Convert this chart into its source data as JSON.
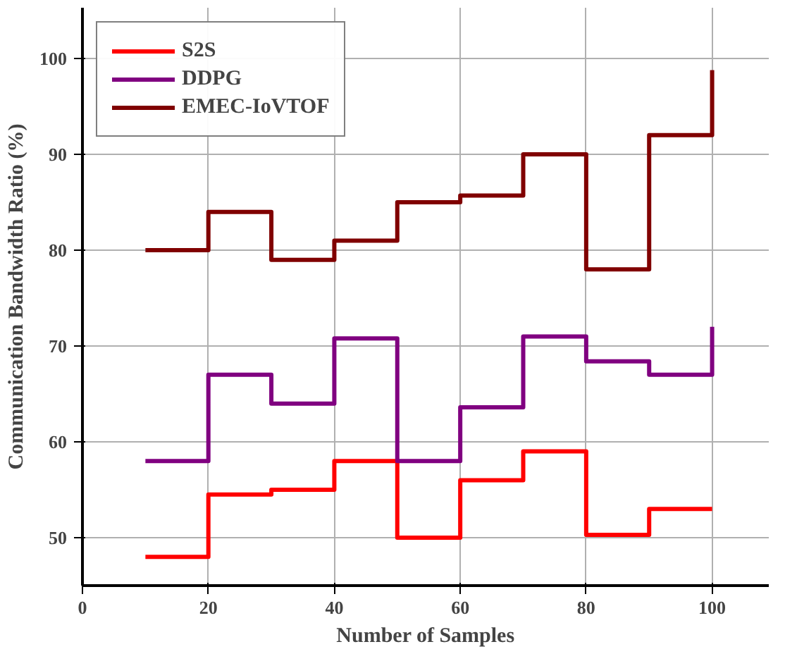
{
  "chart_data": {
    "type": "step",
    "xlabel": "Number of Samples",
    "ylabel": "Communication Bandwidth Ratio (%)",
    "x": [
      10,
      20,
      30,
      40,
      50,
      60,
      70,
      80,
      90,
      100
    ],
    "series": [
      {
        "name": "S2S",
        "color": "#ff0000",
        "values": [
          48,
          54.5,
          55,
          58,
          50,
          56,
          59,
          50.3,
          53,
          53
        ]
      },
      {
        "name": "DDPG",
        "color": "#800080",
        "values": [
          58,
          67,
          64,
          70.8,
          58,
          63.6,
          71,
          68.4,
          67,
          72
        ]
      },
      {
        "name": "EMEC-IoVTOF",
        "color": "#800000",
        "values": [
          80,
          84,
          79,
          81,
          85,
          85.7,
          90,
          78,
          92,
          98.8
        ]
      }
    ],
    "xlim": [
      0,
      109
    ],
    "ylim": [
      45,
      105.3
    ],
    "xticks": [
      0,
      20,
      40,
      60,
      80,
      100
    ],
    "yticks": [
      50,
      60,
      70,
      80,
      90,
      100
    ],
    "grid": true,
    "legend": "top left",
    "line_style": "solid"
  }
}
